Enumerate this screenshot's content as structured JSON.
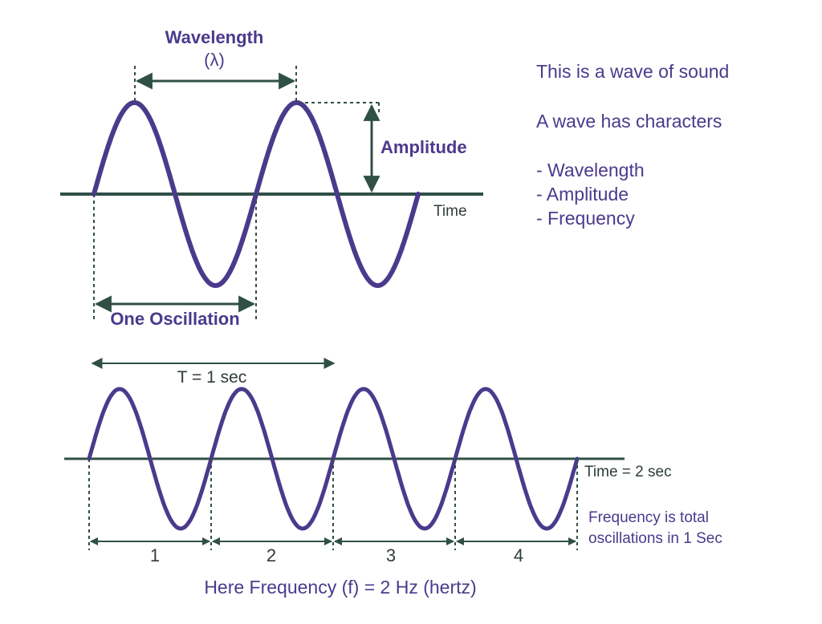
{
  "colors": {
    "wave": "#4b3a8c",
    "axis": "#2f4f47",
    "text_purple": "#4b3a8c",
    "text_dark": "#2f3d3a"
  },
  "top": {
    "wavelength_label": "Wavelength",
    "lambda_label": "(λ)",
    "amplitude_label": "Amplitude",
    "time_label": "Time",
    "oscillation_label": "One Oscillation"
  },
  "notes": {
    "line1": "This is a wave of sound",
    "line2": "A wave has characters",
    "items": [
      "- Wavelength",
      "- Amplitude",
      "- Frequency"
    ]
  },
  "bottom": {
    "period_label": "T = 1 sec",
    "time_label": "Time = 2 sec",
    "freq_note_line1": "Frequency is total",
    "freq_note_line2": "oscillations in 1 Sec",
    "cycle_numbers": [
      "1",
      "2",
      "3",
      "4"
    ],
    "result": "Here Frequency (f) = 2 Hz (hertz)"
  }
}
